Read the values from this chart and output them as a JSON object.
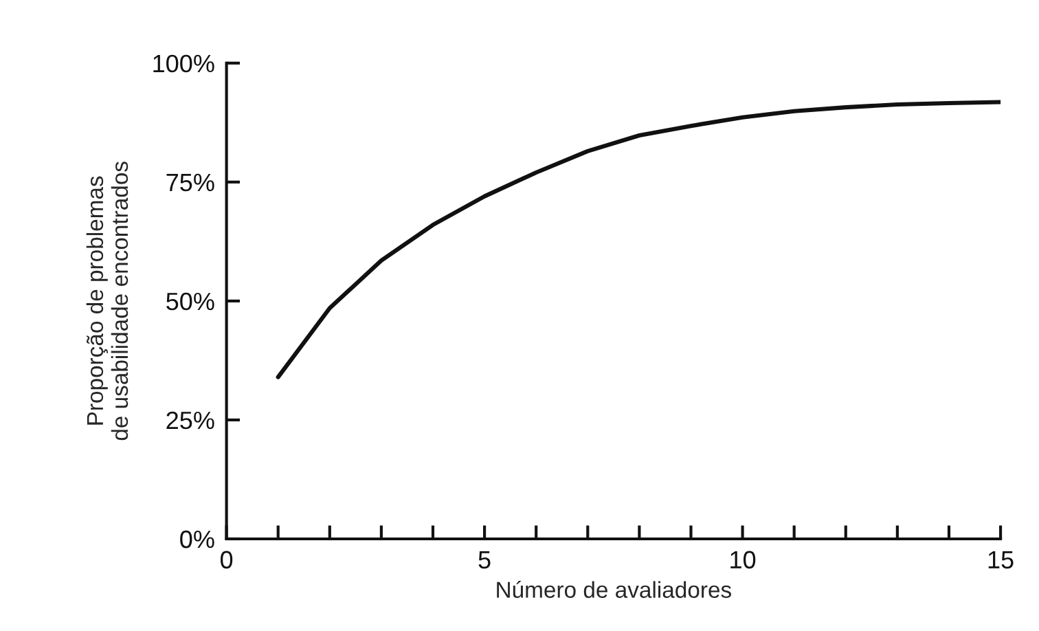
{
  "chart_data": {
    "type": "line",
    "xlabel": "Número de avaliadores",
    "ylabel": "Proporção de problemas\nde usabilidade encontrados",
    "x": [
      1,
      2,
      3,
      4,
      5,
      6,
      7,
      8,
      9,
      10,
      11,
      12,
      13,
      14,
      15
    ],
    "series": [
      {
        "color": "#111111",
        "values": [
          34,
          48.5,
          58.5,
          66,
          72,
          77,
          81.5,
          84.8,
          86.8,
          88.6,
          89.9,
          90.7,
          91.3,
          91.6,
          91.8
        ]
      }
    ],
    "xlim": [
      0,
      15
    ],
    "xticks": [
      0,
      {
        "value": 1,
        "label": null
      },
      {
        "value": 2,
        "label": null
      },
      {
        "value": 3,
        "label": null
      },
      {
        "value": 4,
        "label": null
      },
      5,
      {
        "value": 6,
        "label": null
      },
      {
        "value": 7,
        "label": null
      },
      {
        "value": 8,
        "label": null
      },
      {
        "value": 9,
        "label": null
      },
      10,
      {
        "value": 11,
        "label": null
      },
      {
        "value": 12,
        "label": null
      },
      {
        "value": 13,
        "label": null
      },
      {
        "value": 14,
        "label": null
      },
      15
    ],
    "ylim": [
      0,
      100
    ],
    "yticks": [
      {
        "value": 0,
        "label": "0%"
      },
      {
        "value": 25,
        "label": "25%"
      },
      {
        "value": 50,
        "label": "50%"
      },
      {
        "value": 75,
        "label": "75%"
      },
      {
        "value": 100,
        "label": "100%"
      }
    ],
    "grid": false,
    "legend": false,
    "marker": "none",
    "line_style": "solid"
  }
}
